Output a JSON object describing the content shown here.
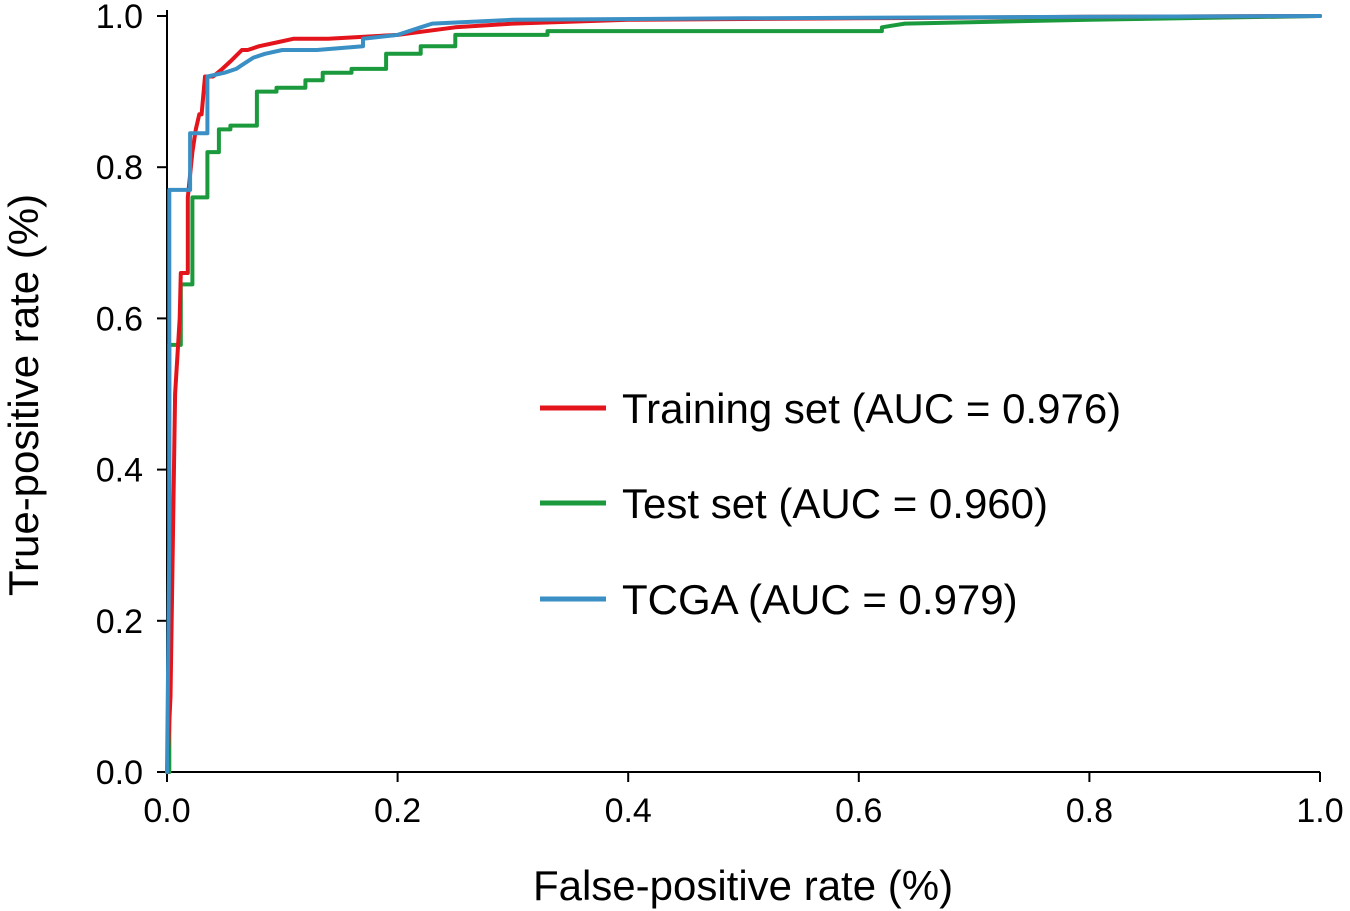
{
  "chart_data": {
    "type": "line",
    "title": "",
    "xlabel": "False-positive rate (%)",
    "ylabel": "True-positive rate (%)",
    "xlim": [
      0,
      1
    ],
    "ylim": [
      0,
      1
    ],
    "xticks": [
      "0.0",
      "0.2",
      "0.4",
      "0.6",
      "0.8",
      "1.0"
    ],
    "yticks": [
      "0.0",
      "0.2",
      "0.4",
      "0.6",
      "0.8",
      "1.0"
    ],
    "grid": false,
    "legend_position": "center-right",
    "series": [
      {
        "name": "Training set (AUC = 0.976)",
        "color": "#e3141b",
        "x": [
          0,
          0.003,
          0.005,
          0.007,
          0.009,
          0.011,
          0.012,
          0.018,
          0.018,
          0.022,
          0.025,
          0.028,
          0.03,
          0.033,
          0.04,
          0.048,
          0.055,
          0.065,
          0.07,
          0.08,
          0.095,
          0.11,
          0.14,
          0.2,
          0.25,
          0.3,
          0.4,
          0.6,
          0.8,
          1.0
        ],
        "y": [
          0,
          0.1,
          0.3,
          0.5,
          0.55,
          0.6,
          0.66,
          0.66,
          0.76,
          0.82,
          0.85,
          0.87,
          0.87,
          0.92,
          0.92,
          0.93,
          0.94,
          0.955,
          0.955,
          0.96,
          0.965,
          0.97,
          0.97,
          0.975,
          0.985,
          0.99,
          0.995,
          0.997,
          0.999,
          1.0
        ]
      },
      {
        "name": "Test set (AUC = 0.960)",
        "color": "#1a9a3c",
        "x": [
          0,
          0.002,
          0.002,
          0.012,
          0.012,
          0.022,
          0.022,
          0.035,
          0.035,
          0.045,
          0.045,
          0.055,
          0.055,
          0.078,
          0.078,
          0.095,
          0.095,
          0.12,
          0.12,
          0.135,
          0.135,
          0.16,
          0.16,
          0.19,
          0.19,
          0.22,
          0.22,
          0.25,
          0.25,
          0.33,
          0.33,
          0.62,
          0.62,
          0.64,
          0.8,
          1.0
        ],
        "y": [
          0,
          0,
          0.565,
          0.565,
          0.645,
          0.645,
          0.76,
          0.76,
          0.82,
          0.82,
          0.85,
          0.85,
          0.855,
          0.855,
          0.9,
          0.9,
          0.905,
          0.905,
          0.915,
          0.915,
          0.925,
          0.925,
          0.93,
          0.93,
          0.95,
          0.95,
          0.96,
          0.96,
          0.975,
          0.975,
          0.98,
          0.98,
          0.985,
          0.99,
          0.995,
          1.0
        ]
      },
      {
        "name": "TCGA (AUC = 0.979)",
        "color": "#3a8fc4",
        "x": [
          0,
          0.002,
          0.002,
          0.015,
          0.015,
          0.02,
          0.02,
          0.03,
          0.03,
          0.035,
          0.035,
          0.05,
          0.06,
          0.065,
          0.075,
          0.085,
          0.1,
          0.13,
          0.17,
          0.17,
          0.2,
          0.22,
          0.23,
          0.3,
          0.5,
          0.8,
          1.0
        ],
        "y": [
          0,
          0.3,
          0.77,
          0.77,
          0.77,
          0.77,
          0.845,
          0.845,
          0.845,
          0.845,
          0.92,
          0.925,
          0.93,
          0.935,
          0.945,
          0.95,
          0.955,
          0.955,
          0.96,
          0.97,
          0.975,
          0.985,
          0.99,
          0.995,
          0.997,
          0.999,
          1.0
        ]
      }
    ]
  }
}
